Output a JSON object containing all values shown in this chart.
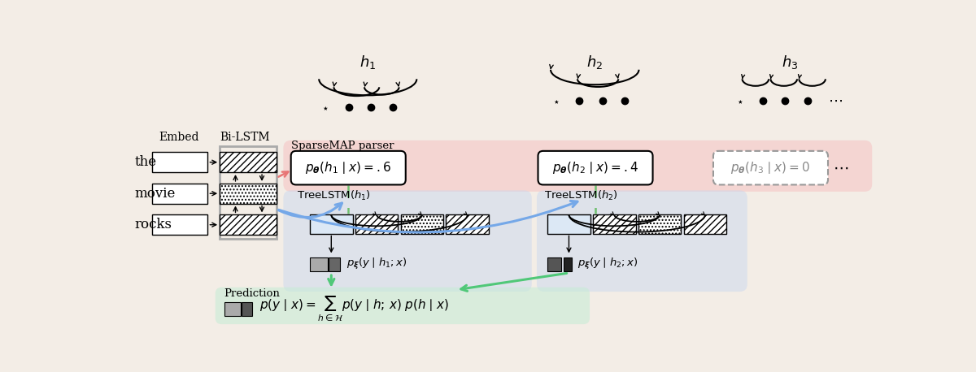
{
  "bg_color": "#f3ede6",
  "pink_bg": "#f5c5c5",
  "blue_bg": "#c5d5f0",
  "green_bg": "#c5ecd5",
  "words": [
    "the",
    "movie",
    "rocks"
  ],
  "embed_label": "Embed",
  "bilstm_label": "Bi-LSTM",
  "h_labels": [
    "$h_1$",
    "$h_2$",
    "$h_3$"
  ],
  "sparse_label": "SparseMAP parser",
  "treelstm_labels": [
    "$\\mathrm{TreeLSTM}(h_1)$",
    "$\\mathrm{TreeLSTM}(h_2)$"
  ],
  "pred_label": "Prediction",
  "pred_eq": "$p(y \\mid x) = \\sum_{h \\in \\mathcal{H}} p(y \\mid h;\\, x)\\; p(h \\mid x)$",
  "pxi_labels": [
    "$p_{\\boldsymbol{\\xi}}(y \\mid h_1; x)$",
    "$p_{\\boldsymbol{\\xi}}(y \\mid h_2; x)$"
  ],
  "hatch_diagonal": "////",
  "hatch_dots": "....",
  "arrow_pink": "#e87575",
  "arrow_blue": "#75a8e8",
  "arrow_green": "#50c878",
  "dashed_green": "#70c070"
}
